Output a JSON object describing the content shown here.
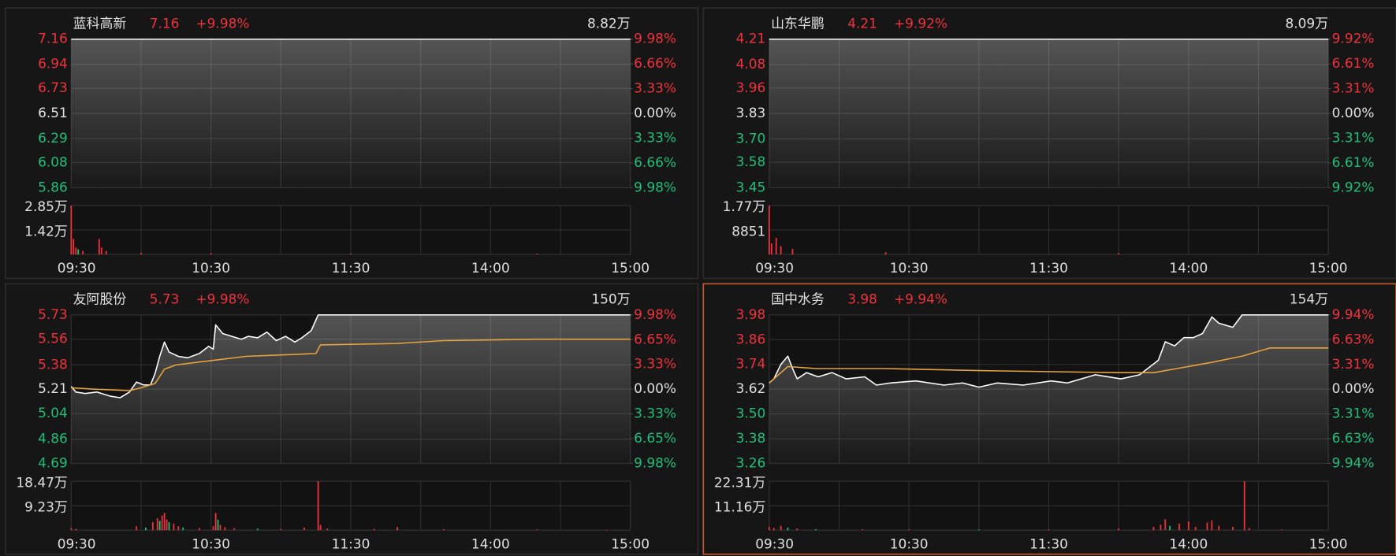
{
  "chart_data": [
    {
      "type": "line",
      "title": "蓝科高新",
      "price": 7.16,
      "change": "+9.98%",
      "volume_total": "8.82万",
      "xlim": [
        0,
        240
      ],
      "xticks": [
        {
          "value": 0,
          "label": "09:30"
        },
        {
          "value": 60,
          "label": "10:30"
        },
        {
          "value": 120,
          "label": "11:30"
        },
        {
          "value": 180,
          "label": "14:00"
        },
        {
          "value": 240,
          "label": "15:00"
        }
      ],
      "ylim": [
        5.86,
        7.16
      ],
      "yticks": [
        7.16,
        6.94,
        6.73,
        6.51,
        6.29,
        6.08,
        5.86
      ],
      "y2lim": [
        -9.98,
        9.98
      ],
      "y2ticks": [
        {
          "value": 9.98,
          "label": "9.98%"
        },
        {
          "value": 6.66,
          "label": "6.66%"
        },
        {
          "value": 3.33,
          "label": "3.33%"
        },
        {
          "value": 0,
          "label": "0.00%"
        },
        {
          "value": -3.33,
          "label": "3.33%"
        },
        {
          "value": -6.66,
          "label": "6.66%"
        },
        {
          "value": -9.98,
          "label": "9.98%"
        }
      ],
      "series": [
        {
          "color": "#ffffff",
          "area": true,
          "x": [
            0,
            240
          ],
          "values": [
            7.16,
            7.16
          ]
        }
      ],
      "volume": {
        "ylim": [
          0,
          28470
        ],
        "yticks": [
          {
            "value": 28470,
            "label": "2.85万"
          },
          {
            "value": 14235,
            "label": "1.42万"
          }
        ],
        "x": [
          0,
          1,
          2,
          3,
          5,
          12,
          13,
          15,
          30,
          60,
          120,
          200
        ],
        "values": [
          28470,
          9000,
          4000,
          3000,
          2000,
          9000,
          4000,
          2000,
          1000,
          800,
          500,
          500
        ],
        "colors": [
          "#f0323c",
          "#f0323c",
          "#f0323c",
          "#1fbf7a",
          "#f0323c",
          "#f0323c",
          "#f0323c",
          "#f0323c",
          "#f0323c",
          "#f0323c",
          "#f0323c",
          "#f0323c"
        ]
      }
    },
    {
      "type": "line",
      "title": "山东华鹏",
      "price": 4.21,
      "change": "+9.92%",
      "volume_total": "8.09万",
      "xlim": [
        0,
        240
      ],
      "xticks": [
        {
          "value": 0,
          "label": "09:30"
        },
        {
          "value": 60,
          "label": "10:30"
        },
        {
          "value": 120,
          "label": "11:30"
        },
        {
          "value": 180,
          "label": "14:00"
        },
        {
          "value": 240,
          "label": "15:00"
        }
      ],
      "ylim": [
        3.45,
        4.21
      ],
      "yticks": [
        4.21,
        4.08,
        3.96,
        3.83,
        {
          "value": 3.7,
          "label": "3.70"
        },
        3.58,
        3.45
      ],
      "y2lim": [
        -9.92,
        9.92
      ],
      "y2ticks": [
        {
          "value": 9.92,
          "label": "9.92%"
        },
        {
          "value": 6.61,
          "label": "6.61%"
        },
        {
          "value": 3.31,
          "label": "3.31%"
        },
        {
          "value": 0,
          "label": "0.00%"
        },
        {
          "value": -3.31,
          "label": "3.31%"
        },
        {
          "value": -6.61,
          "label": "6.61%"
        },
        {
          "value": -9.92,
          "label": "9.92%"
        }
      ],
      "series": [
        {
          "color": "#ffffff",
          "area": true,
          "x": [
            0,
            240
          ],
          "values": [
            4.21,
            4.21
          ]
        }
      ],
      "volume": {
        "ylim": [
          0,
          17702
        ],
        "yticks": [
          {
            "value": 17702,
            "label": "1.77万"
          },
          8851
        ],
        "x": [
          0,
          1,
          3,
          5,
          10,
          50,
          150
        ],
        "values": [
          17702,
          4000,
          6000,
          3000,
          2000,
          800,
          500
        ],
        "colors": [
          "#f0323c",
          "#f0323c",
          "#f0323c",
          "#f0323c",
          "#f0323c",
          "#f0323c",
          "#f0323c"
        ]
      }
    },
    {
      "type": "line",
      "title": "友阿股份",
      "price": 5.73,
      "change": "+9.98%",
      "volume_total": "150万",
      "xlim": [
        0,
        240
      ],
      "xticks": [
        {
          "value": 0,
          "label": "09:30"
        },
        {
          "value": 60,
          "label": "10:30"
        },
        {
          "value": 120,
          "label": "11:30"
        },
        {
          "value": 180,
          "label": "14:00"
        },
        {
          "value": 240,
          "label": "15:00"
        }
      ],
      "ylim": [
        4.69,
        5.73
      ],
      "yticks": [
        5.73,
        5.56,
        5.38,
        5.21,
        5.04,
        4.86,
        4.69
      ],
      "y2lim": [
        -9.98,
        9.98
      ],
      "y2ticks": [
        {
          "value": 9.98,
          "label": "9.98%"
        },
        {
          "value": 6.65,
          "label": "6.65%"
        },
        {
          "value": 3.33,
          "label": "3.33%"
        },
        {
          "value": 0,
          "label": "0.00%"
        },
        {
          "value": -3.33,
          "label": "3.33%"
        },
        {
          "value": -6.65,
          "label": "6.65%"
        },
        {
          "value": -9.98,
          "label": "9.98%"
        }
      ],
      "series": [
        {
          "color": "#ffffff",
          "area": true,
          "x": [
            0,
            2,
            6,
            11,
            17,
            21,
            25,
            28,
            31,
            34,
            36,
            38,
            40,
            42,
            46,
            50,
            55,
            59,
            61,
            62,
            65,
            69,
            73,
            76,
            80,
            84,
            88,
            92,
            96,
            99,
            103,
            106,
            240
          ],
          "values": [
            5.23,
            5.19,
            5.18,
            5.19,
            5.16,
            5.15,
            5.19,
            5.26,
            5.24,
            5.24,
            5.32,
            5.44,
            5.54,
            5.47,
            5.44,
            5.43,
            5.46,
            5.51,
            5.49,
            5.66,
            5.6,
            5.58,
            5.56,
            5.58,
            5.57,
            5.61,
            5.55,
            5.58,
            5.54,
            5.57,
            5.62,
            5.73,
            5.73
          ]
        },
        {
          "color": "#e8a33d",
          "x": [
            0,
            10,
            25,
            30,
            36,
            40,
            45,
            60,
            75,
            105,
            107,
            140,
            160,
            200,
            240
          ],
          "values": [
            5.22,
            5.21,
            5.2,
            5.22,
            5.25,
            5.35,
            5.38,
            5.41,
            5.44,
            5.46,
            5.52,
            5.53,
            5.55,
            5.56,
            5.56
          ]
        }
      ],
      "volume": {
        "ylim": [
          0,
          184700
        ],
        "yticks": [
          {
            "value": 184700,
            "label": "18.47万"
          },
          {
            "value": 92350,
            "label": "9.23万"
          }
        ],
        "x": [
          0,
          2,
          28,
          32,
          35,
          37,
          38,
          39,
          40,
          41,
          42,
          44,
          46,
          48,
          55,
          61,
          62,
          63,
          64,
          66,
          70,
          80,
          90,
          100,
          106,
          107,
          110,
          130,
          140,
          160,
          200,
          230
        ],
        "values": [
          8000,
          5000,
          15000,
          10000,
          30000,
          45000,
          35000,
          55000,
          65000,
          40000,
          30000,
          25000,
          15000,
          10000,
          8000,
          15000,
          65000,
          40000,
          20000,
          12000,
          8000,
          6000,
          5000,
          10000,
          184700,
          20000,
          6000,
          5000,
          12000,
          4000,
          3000,
          2000
        ],
        "colors": [
          "#f0323c",
          "#f0323c",
          "#f0323c",
          "#1fbf7a",
          "#f0323c",
          "#f0323c",
          "#1fbf7a",
          "#f0323c",
          "#f0323c",
          "#f0323c",
          "#1fbf7a",
          "#f0323c",
          "#f0323c",
          "#1fbf7a",
          "#f0323c",
          "#f0323c",
          "#f0323c",
          "#1fbf7a",
          "#f0323c",
          "#f0323c",
          "#f0323c",
          "#1fbf7a",
          "#f0323c",
          "#f0323c",
          "#f0323c",
          "#f0323c",
          "#f0323c",
          "#f0323c",
          "#f0323c",
          "#f0323c",
          "#f0323c",
          "#f0323c"
        ]
      }
    },
    {
      "type": "line",
      "title": "国中水务",
      "price": 3.98,
      "change": "+9.94%",
      "volume_total": "154万",
      "selected": true,
      "xlim": [
        0,
        240
      ],
      "xticks": [
        {
          "value": 0,
          "label": "09:30"
        },
        {
          "value": 60,
          "label": "10:30"
        },
        {
          "value": 120,
          "label": "11:30"
        },
        {
          "value": 180,
          "label": "14:00"
        },
        {
          "value": 240,
          "label": "15:00"
        }
      ],
      "ylim": [
        3.26,
        3.98
      ],
      "yticks": [
        3.98,
        3.86,
        3.74,
        3.62,
        {
          "value": 3.5,
          "label": "3.50"
        },
        3.38,
        3.26
      ],
      "y2lim": [
        -9.94,
        9.94
      ],
      "y2ticks": [
        {
          "value": 9.94,
          "label": "9.94%"
        },
        {
          "value": 6.63,
          "label": "6.63%"
        },
        {
          "value": 3.31,
          "label": "3.31%"
        },
        {
          "value": 0,
          "label": "0.00%"
        },
        {
          "value": -3.31,
          "label": "3.31%"
        },
        {
          "value": -6.63,
          "label": "6.63%"
        },
        {
          "value": -9.94,
          "label": "9.94%"
        }
      ],
      "series": [
        {
          "color": "#ffffff",
          "area": true,
          "x": [
            0,
            2,
            5,
            8,
            10,
            12,
            16,
            21,
            27,
            33,
            41,
            46,
            52,
            63,
            75,
            83,
            90,
            98,
            109,
            121,
            128,
            140,
            151,
            159,
            167,
            170,
            174,
            178,
            182,
            186,
            190,
            193,
            199,
            203,
            240
          ],
          "values": [
            3.65,
            3.67,
            3.74,
            3.78,
            3.72,
            3.67,
            3.7,
            3.68,
            3.7,
            3.67,
            3.68,
            3.64,
            3.65,
            3.66,
            3.64,
            3.65,
            3.63,
            3.65,
            3.64,
            3.66,
            3.65,
            3.69,
            3.67,
            3.69,
            3.76,
            3.85,
            3.83,
            3.87,
            3.87,
            3.89,
            3.97,
            3.94,
            3.92,
            3.98,
            3.98
          ]
        },
        {
          "color": "#e8a33d",
          "x": [
            0,
            5,
            8,
            20,
            50,
            90,
            150,
            165,
            175,
            190,
            203,
            215,
            240
          ],
          "values": [
            3.65,
            3.7,
            3.73,
            3.72,
            3.72,
            3.71,
            3.7,
            3.7,
            3.72,
            3.75,
            3.78,
            3.82,
            3.82
          ]
        }
      ],
      "volume": {
        "ylim": [
          0,
          223140
        ],
        "yticks": [
          {
            "value": 223140,
            "label": "22.31万"
          },
          {
            "value": 111570,
            "label": "11.16万"
          }
        ],
        "x": [
          0,
          2,
          5,
          8,
          12,
          20,
          40,
          60,
          90,
          120,
          150,
          165,
          168,
          170,
          172,
          176,
          180,
          183,
          188,
          190,
          193,
          199,
          204,
          206,
          220
        ],
        "values": [
          15000,
          10000,
          20000,
          12000,
          8000,
          5000,
          4000,
          3000,
          3000,
          4000,
          8000,
          15000,
          25000,
          50000,
          20000,
          30000,
          40000,
          15000,
          35000,
          45000,
          20000,
          15000,
          223140,
          10000,
          3000
        ],
        "colors": [
          "#f0323c",
          "#f0323c",
          "#f0323c",
          "#1fbf7a",
          "#f0323c",
          "#1fbf7a",
          "#f0323c",
          "#f0323c",
          "#1fbf7a",
          "#f0323c",
          "#f0323c",
          "#f0323c",
          "#f0323c",
          "#f0323c",
          "#1fbf7a",
          "#f0323c",
          "#f0323c",
          "#f0323c",
          "#f0323c",
          "#f0323c",
          "#f0323c",
          "#f0323c",
          "#f0323c",
          "#f0323c",
          "#f0323c"
        ]
      }
    }
  ]
}
